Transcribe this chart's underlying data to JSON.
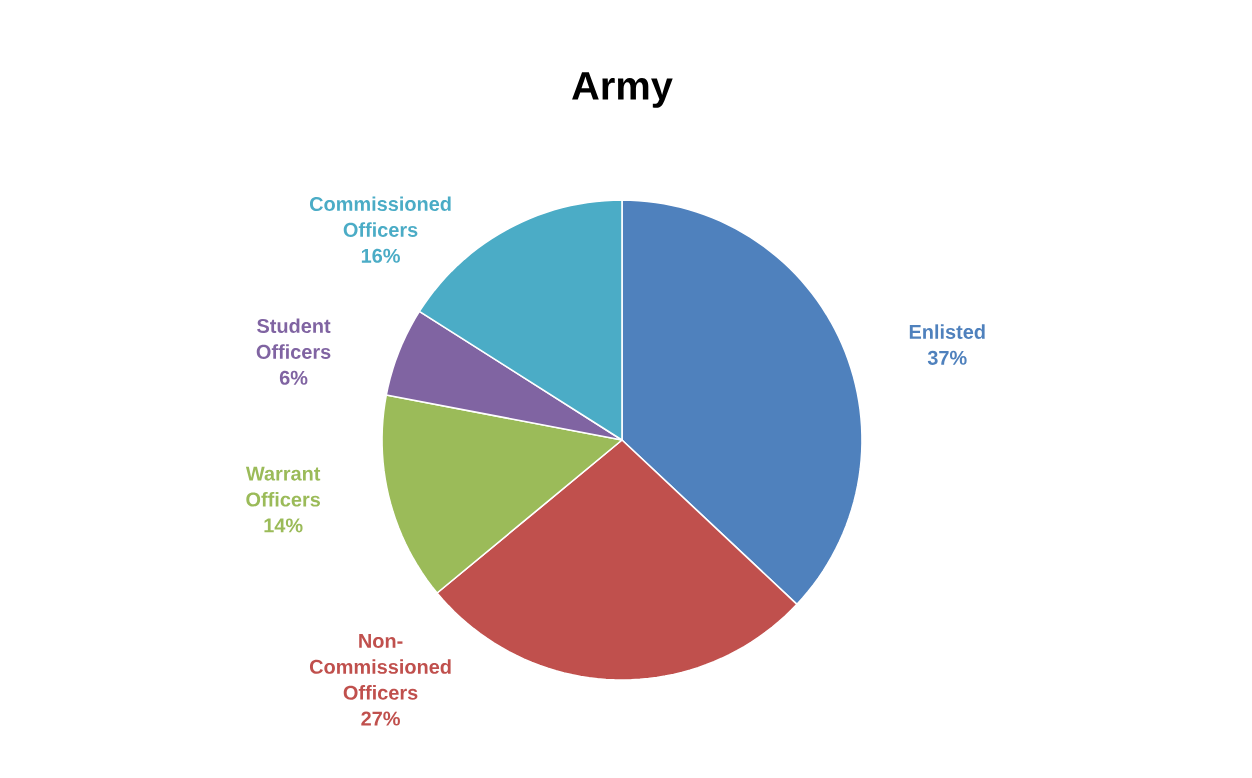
{
  "chart_data": {
    "type": "pie",
    "title": "Army",
    "categories": [
      "Enlisted",
      "Non-Commissioned Officers",
      "Warrant Officers",
      "Student Officers",
      "Commissioned Officers"
    ],
    "values": [
      37,
      27,
      14,
      6,
      16
    ],
    "value_labels": [
      "37%",
      "27%",
      "14%",
      "6%",
      "16%"
    ],
    "colors": [
      "#4f81bd",
      "#c0504d",
      "#9bbb59",
      "#8064a2",
      "#4bacc6"
    ]
  }
}
